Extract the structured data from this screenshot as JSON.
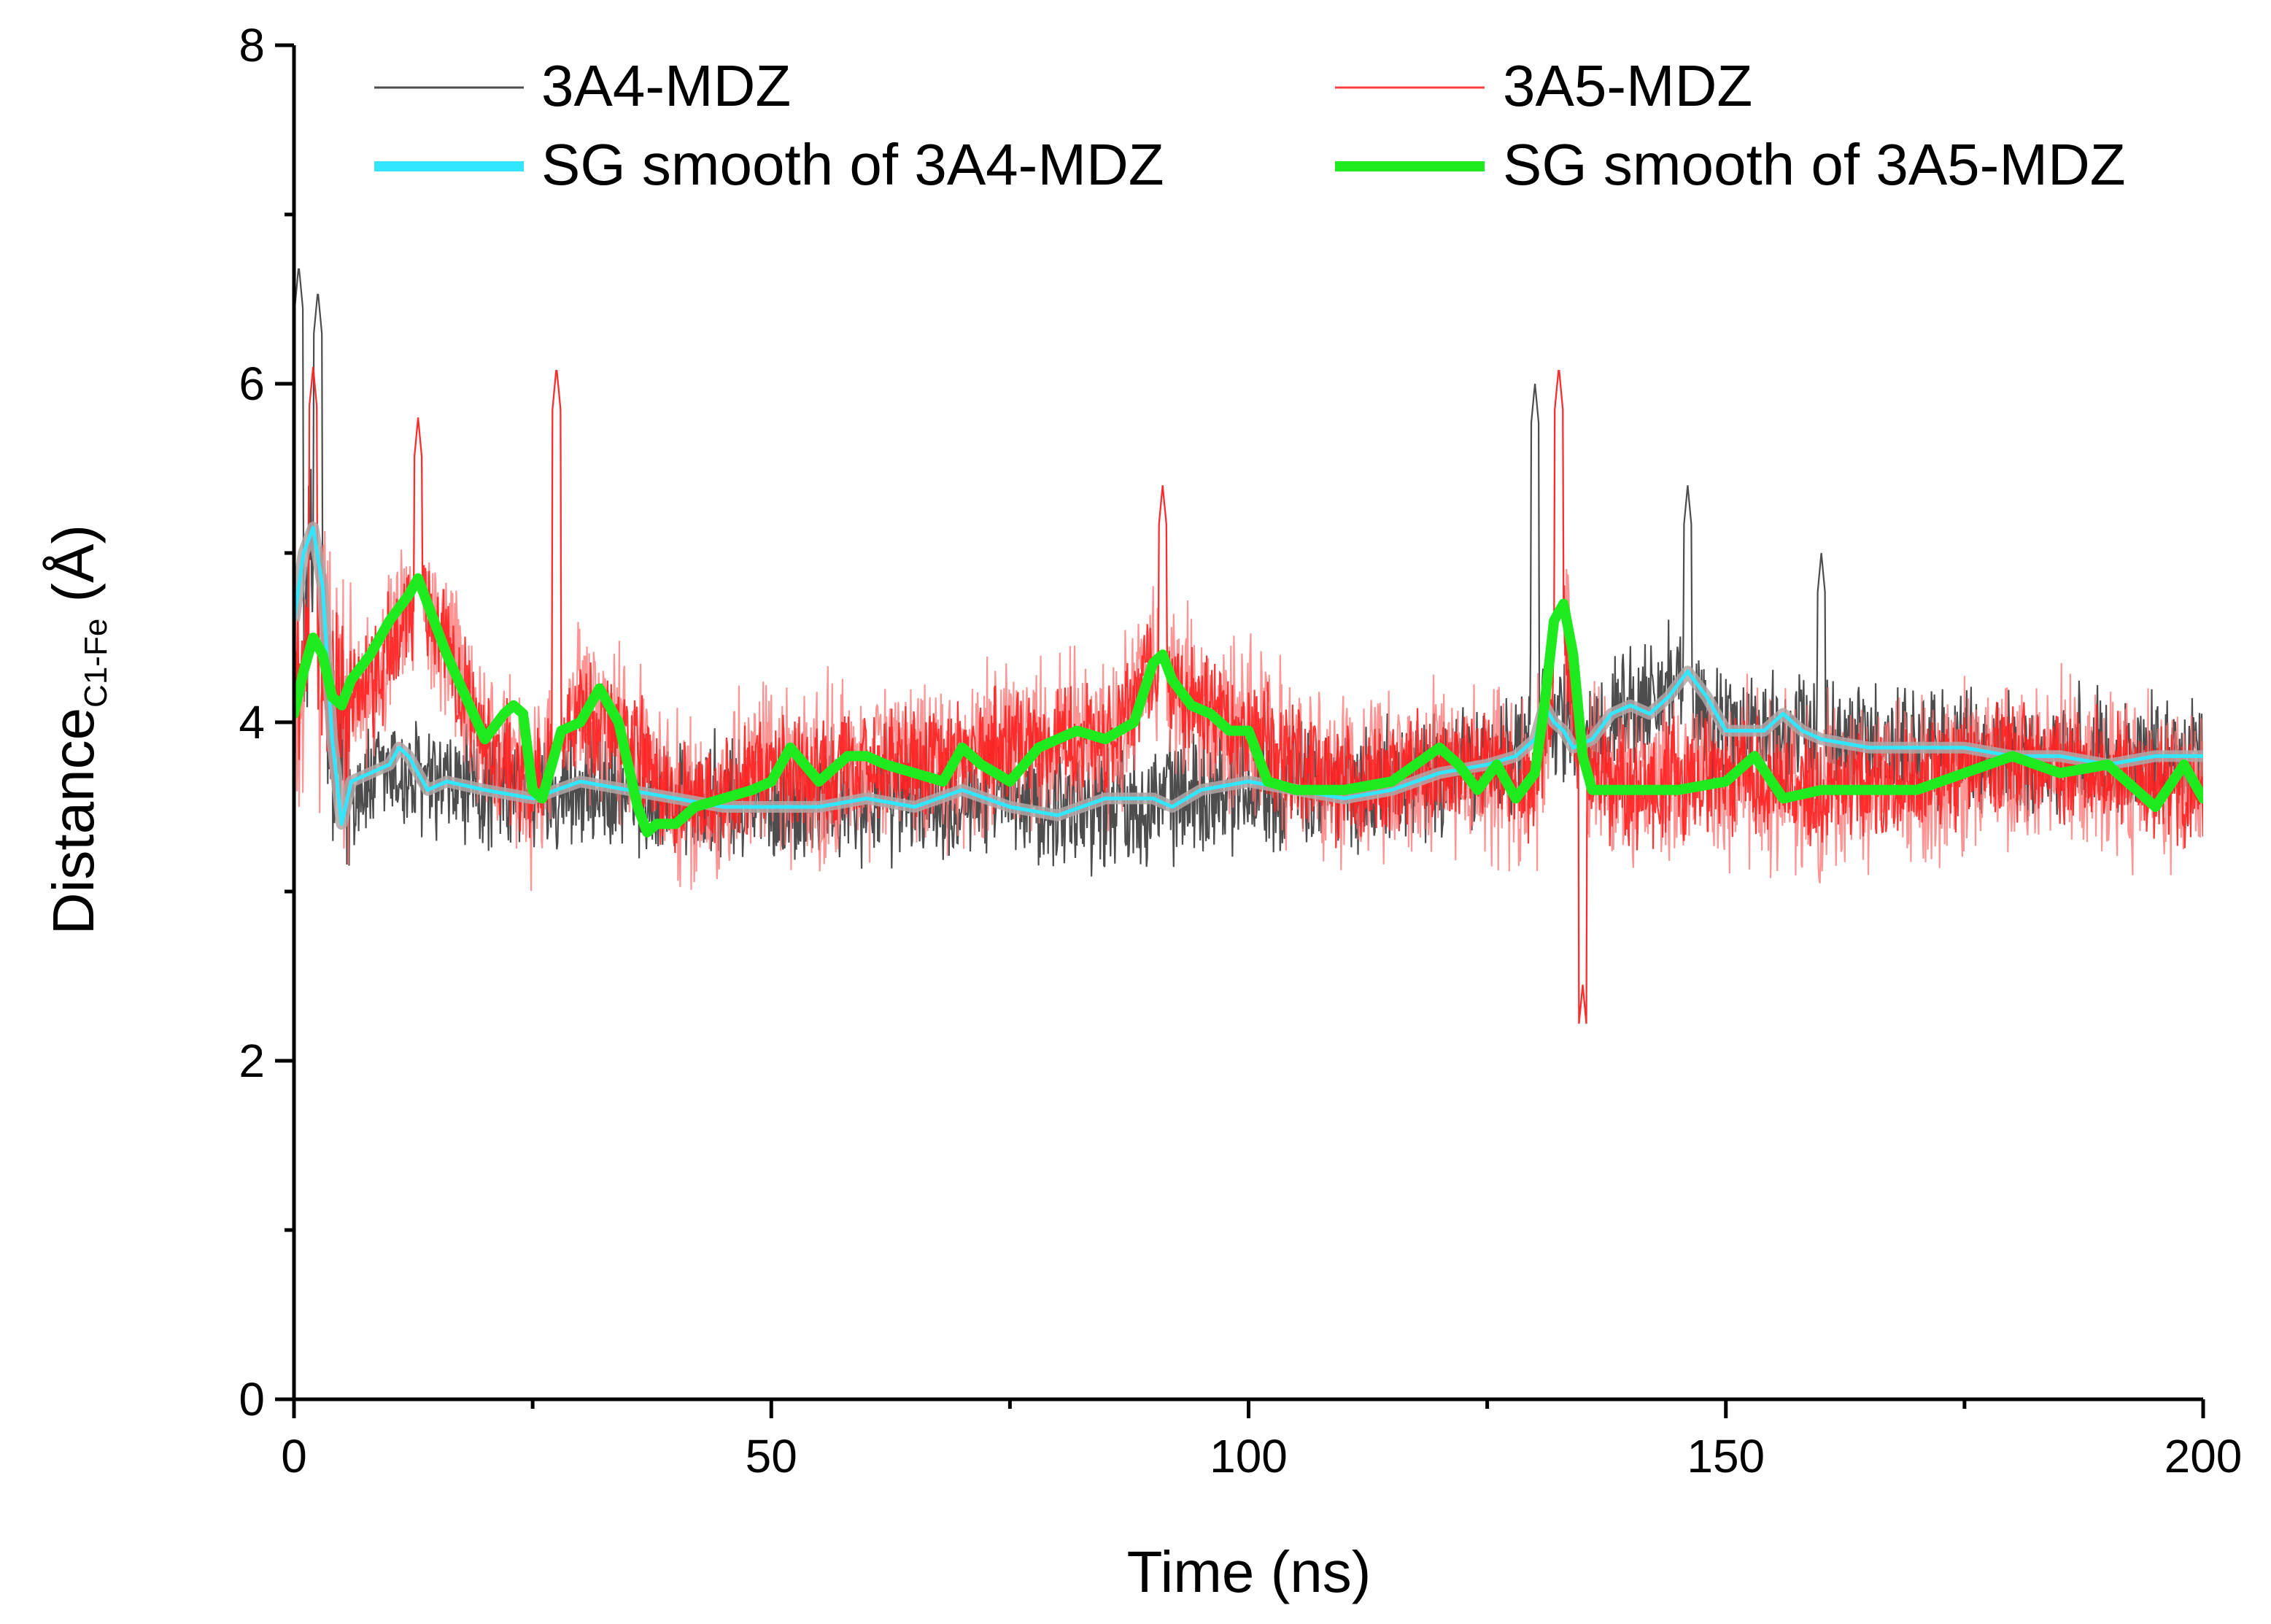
{
  "chart_data": {
    "type": "line",
    "title": "",
    "xlabel": "Time (ns)",
    "ylabel": {
      "main": "Distance",
      "subscript": "C1-Fe",
      "unit": "(Å)"
    },
    "xlim": [
      0,
      200
    ],
    "ylim": [
      0,
      8
    ],
    "xticks": [
      0,
      50,
      100,
      150,
      200
    ],
    "yticks": [
      0,
      2,
      4,
      6,
      8
    ],
    "legend_position": "top",
    "colors": {
      "raw_3A4": "#4d4d4d",
      "raw_3A5": "#ff2020",
      "raw_3A5_light": "#ff7070",
      "smooth_3A4": "#33e6ff",
      "smooth_3A4_shadow": "#b3a6a6",
      "smooth_3A5": "#1eeb1e"
    },
    "series": [
      {
        "name": "3A4-MDZ",
        "kind": "raw",
        "mean_profile": {
          "x": [
            0,
            2,
            4,
            6,
            10,
            15,
            20,
            30,
            40,
            50,
            60,
            70,
            80,
            90,
            100,
            110,
            120,
            125,
            128,
            131,
            132,
            135,
            140,
            145,
            150,
            160,
            170,
            180,
            190,
            200
          ],
          "y": [
            4.6,
            4.9,
            3.9,
            3.6,
            3.7,
            3.6,
            3.6,
            3.6,
            3.55,
            3.5,
            3.55,
            3.6,
            3.5,
            3.55,
            3.65,
            3.6,
            3.7,
            3.75,
            3.8,
            4.2,
            4.0,
            3.9,
            4.1,
            4.2,
            3.95,
            3.9,
            3.85,
            3.8,
            3.8,
            3.8
          ]
        },
        "noise_amplitude": 0.45,
        "peaks": [
          [
            0.5,
            6.7
          ],
          [
            2.5,
            6.55
          ],
          [
            130,
            6.0
          ],
          [
            146,
            5.4
          ],
          [
            160,
            5.0
          ]
        ]
      },
      {
        "name": "3A5-MDZ",
        "kind": "raw",
        "mean_profile": {
          "x": [
            0,
            2,
            5,
            10,
            13,
            16,
            20,
            25,
            30,
            35,
            40,
            45,
            50,
            55,
            60,
            70,
            80,
            85,
            90,
            95,
            100,
            105,
            110,
            120,
            125,
            130,
            133,
            135,
            140,
            150,
            160,
            170,
            180,
            190,
            200
          ],
          "y": [
            4.2,
            4.5,
            4.1,
            4.4,
            4.8,
            4.4,
            3.9,
            3.6,
            4.1,
            3.9,
            3.5,
            3.55,
            3.75,
            3.7,
            3.75,
            3.8,
            3.9,
            3.85,
            4.3,
            4.05,
            3.95,
            3.75,
            3.6,
            3.75,
            3.7,
            3.6,
            4.6,
            3.7,
            3.6,
            3.7,
            3.6,
            3.65,
            3.8,
            3.7,
            3.6
          ]
        },
        "noise_amplitude": 0.5,
        "peaks": [
          [
            2,
            6.1
          ],
          [
            13,
            5.8
          ],
          [
            27.5,
            6.1
          ],
          [
            91,
            5.4
          ],
          [
            132.5,
            6.1
          ],
          [
            135,
            2.45
          ]
        ]
      },
      {
        "name": "SG smooth of 3A4-MDZ",
        "kind": "smooth",
        "x": [
          0,
          1,
          2,
          3,
          4,
          5,
          6,
          8,
          10,
          11,
          12,
          14,
          16,
          20,
          25,
          30,
          35,
          40,
          45,
          50,
          55,
          60,
          65,
          70,
          75,
          80,
          85,
          90,
          92,
          95,
          100,
          105,
          110,
          115,
          120,
          125,
          128,
          130,
          131,
          132,
          133,
          134,
          136,
          138,
          140,
          142,
          144,
          146,
          148,
          150,
          152,
          154,
          156,
          158,
          160,
          165,
          170,
          175,
          180,
          185,
          190,
          195,
          200
        ],
        "y": [
          4.6,
          5.0,
          5.15,
          4.8,
          3.9,
          3.4,
          3.65,
          3.7,
          3.75,
          3.85,
          3.8,
          3.6,
          3.65,
          3.6,
          3.55,
          3.65,
          3.6,
          3.55,
          3.5,
          3.5,
          3.5,
          3.55,
          3.5,
          3.6,
          3.5,
          3.45,
          3.55,
          3.55,
          3.5,
          3.6,
          3.65,
          3.6,
          3.55,
          3.6,
          3.7,
          3.75,
          3.8,
          3.9,
          4.1,
          4.0,
          3.95,
          3.85,
          3.9,
          4.05,
          4.1,
          4.05,
          4.15,
          4.3,
          4.15,
          3.95,
          3.95,
          3.95,
          4.05,
          3.95,
          3.9,
          3.85,
          3.85,
          3.85,
          3.8,
          3.8,
          3.75,
          3.8,
          3.8
        ]
      },
      {
        "name": "SG smooth of 3A5-MDZ",
        "kind": "smooth",
        "x": [
          0,
          1,
          2,
          3,
          4,
          5,
          6,
          8,
          10,
          12,
          13,
          14,
          16,
          18,
          20,
          22,
          23,
          24,
          25,
          26,
          28,
          30,
          32,
          34,
          36,
          37,
          38,
          40,
          42,
          45,
          48,
          50,
          52,
          55,
          58,
          60,
          62,
          65,
          68,
          70,
          72,
          75,
          78,
          80,
          82,
          85,
          88,
          90,
          91,
          92,
          94,
          96,
          98,
          100,
          102,
          105,
          110,
          115,
          120,
          122,
          124,
          126,
          128,
          130,
          131,
          132,
          133,
          134,
          135,
          136,
          140,
          145,
          150,
          153,
          156,
          160,
          165,
          170,
          175,
          180,
          185,
          190,
          195,
          198,
          200
        ],
        "y": [
          4.05,
          4.3,
          4.5,
          4.4,
          4.15,
          4.1,
          4.25,
          4.4,
          4.6,
          4.75,
          4.85,
          4.7,
          4.4,
          4.15,
          3.9,
          4.05,
          4.1,
          4.05,
          3.6,
          3.55,
          3.95,
          4.0,
          4.2,
          4.0,
          3.5,
          3.35,
          3.4,
          3.4,
          3.5,
          3.55,
          3.6,
          3.65,
          3.85,
          3.65,
          3.8,
          3.8,
          3.75,
          3.7,
          3.65,
          3.85,
          3.75,
          3.65,
          3.85,
          3.9,
          3.95,
          3.9,
          4.0,
          4.35,
          4.4,
          4.25,
          4.1,
          4.05,
          3.95,
          3.95,
          3.65,
          3.6,
          3.6,
          3.65,
          3.85,
          3.75,
          3.6,
          3.75,
          3.55,
          3.7,
          4.1,
          4.6,
          4.7,
          4.4,
          3.8,
          3.6,
          3.6,
          3.6,
          3.65,
          3.8,
          3.55,
          3.6,
          3.6,
          3.6,
          3.7,
          3.8,
          3.7,
          3.75,
          3.5,
          3.75,
          3.55
        ]
      }
    ]
  }
}
